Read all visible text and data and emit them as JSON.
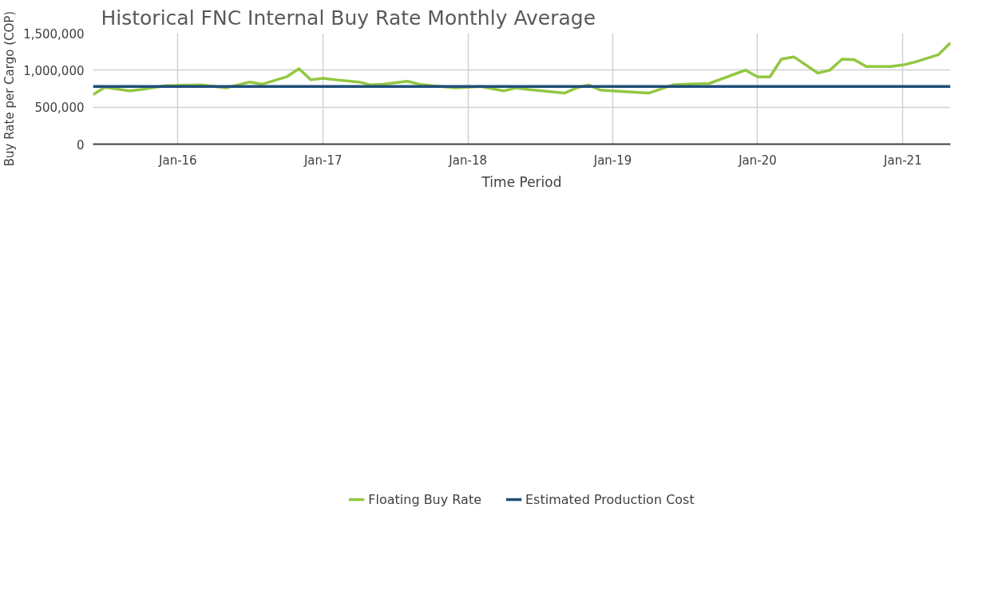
{
  "chart_data": {
    "type": "line",
    "title": "Historical FNC Internal Buy Rate Monthly Average",
    "xlabel": "Time Period",
    "ylabel": "Buy Rate per Cargo (COP)",
    "xlim": [
      "2015-06",
      "2021-05"
    ],
    "xticks": [
      {
        "value": "2016-01",
        "label": "Jan-16"
      },
      {
        "value": "2017-01",
        "label": "Jan-17"
      },
      {
        "value": "2018-01",
        "label": "Jan-18"
      },
      {
        "value": "2019-01",
        "label": "Jan-19"
      },
      {
        "value": "2020-01",
        "label": "Jan-20"
      },
      {
        "value": "2021-01",
        "label": "Jan-21"
      }
    ],
    "ylim": [
      0,
      1500000
    ],
    "yticks": [
      0,
      {
        "value": 500000,
        "label": "500,000"
      },
      {
        "value": 1000000,
        "label": "1,000,000"
      },
      {
        "value": 1500000,
        "label": "1,500,000"
      }
    ],
    "grid": true,
    "legend": "bottom",
    "series": [
      {
        "name": "Floating Buy Rate",
        "color": "#92c741",
        "x": [
          "2015-06",
          "2015-07",
          "2015-09",
          "2015-10",
          "2015-12",
          "2016-03",
          "2016-04",
          "2016-05",
          "2016-07",
          "2016-08",
          "2016-10",
          "2016-11",
          "2016-12",
          "2017-01",
          "2017-02",
          "2017-04",
          "2017-05",
          "2017-06",
          "2017-08",
          "2017-09",
          "2017-10",
          "2017-12",
          "2018-02",
          "2018-04",
          "2018-05",
          "2018-06",
          "2018-09",
          "2018-10",
          "2018-11",
          "2018-12",
          "2019-02",
          "2019-04",
          "2019-06",
          "2019-07",
          "2019-09",
          "2019-12",
          "2020-01",
          "2020-02",
          "2020-03",
          "2020-04",
          "2020-06",
          "2020-07",
          "2020-08",
          "2020-09",
          "2020-10",
          "2020-11",
          "2020-12",
          "2021-01",
          "2021-02",
          "2021-04",
          "2021-05"
        ],
        "values": [
          670000,
          770000,
          720000,
          740000,
          790000,
          800000,
          780000,
          760000,
          840000,
          810000,
          910000,
          1020000,
          870000,
          890000,
          870000,
          840000,
          800000,
          810000,
          850000,
          810000,
          790000,
          760000,
          780000,
          720000,
          760000,
          740000,
          690000,
          760000,
          800000,
          730000,
          710000,
          690000,
          800000,
          810000,
          820000,
          1000000,
          910000,
          910000,
          1150000,
          1180000,
          960000,
          1000000,
          1150000,
          1140000,
          1050000,
          1050000,
          1050000,
          1070000,
          1110000,
          1210000,
          1370000
        ]
      },
      {
        "name": "Estimated Production Cost",
        "color": "#1f4e79",
        "x": [
          "2015-06",
          "2021-05"
        ],
        "values": [
          780000,
          780000
        ]
      }
    ]
  }
}
